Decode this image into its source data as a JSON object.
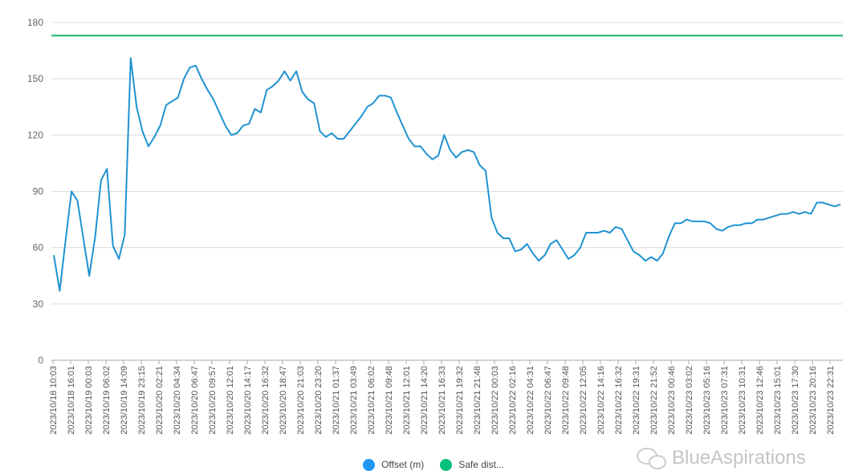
{
  "chart_data": {
    "type": "line",
    "title": "",
    "xlabel": "",
    "ylabel": "",
    "ylim": [
      0,
      180
    ],
    "yticks": [
      0,
      30,
      60,
      90,
      120,
      150,
      180
    ],
    "grid": true,
    "legend_position": "bottom",
    "x_tick_labels": [
      "2023/10/18 10:03",
      "2023/10/18 16:01",
      "2023/10/19 00:03",
      "2023/10/19 06:02",
      "2023/10/19 14:09",
      "2023/10/19 23:15",
      "2023/10/20 02:21",
      "2023/10/20 04:34",
      "2023/10/20 06:47",
      "2023/10/20 09:57",
      "2023/10/20 12:01",
      "2023/10/20 14:17",
      "2023/10/20 16:32",
      "2023/10/20 18:47",
      "2023/10/20 21:03",
      "2023/10/20 23:20",
      "2023/10/21 01:37",
      "2023/10/21 03:49",
      "2023/10/21 06:02",
      "2023/10/21 09:48",
      "2023/10/21 12:01",
      "2023/10/21 14:20",
      "2023/10/21 16:33",
      "2023/10/21 19:32",
      "2023/10/21 21:48",
      "2023/10/22 00:03",
      "2023/10/22 02:16",
      "2023/10/22 04:31",
      "2023/10/22 06:47",
      "2023/10/22 09:48",
      "2023/10/22 12:05",
      "2023/10/22 14:16",
      "2023/10/22 16:32",
      "2023/10/22 19:31",
      "2023/10/22 21:52",
      "2023/10/23 00:46",
      "2023/10/23 03:02",
      "2023/10/23 05:16",
      "2023/10/23 07:31",
      "2023/10/23 10:31",
      "2023/10/23 12:46",
      "2023/10/23 15:01",
      "2023/10/23 17:30",
      "2023/10/23 20:16",
      "2023/10/23 22:31"
    ],
    "series": [
      {
        "name": "Offset (m)",
        "color": "#1f93d1",
        "legend_color": "#2196f3",
        "values": [
          56,
          37,
          64,
          90,
          85,
          65,
          45,
          66,
          96,
          102,
          61,
          54,
          67,
          161,
          135,
          122,
          114,
          119,
          125,
          136,
          138,
          140,
          150,
          156,
          157,
          150,
          144,
          139,
          132,
          125,
          120,
          121,
          125,
          126,
          134,
          132,
          144,
          146,
          149,
          154,
          149,
          154,
          143,
          139,
          137,
          122,
          119,
          121,
          118,
          118,
          122,
          126,
          130,
          135,
          137,
          141,
          141,
          140,
          132,
          125,
          118,
          114,
          114,
          110,
          107,
          109,
          120,
          112,
          108,
          111,
          112,
          111,
          104,
          101,
          76,
          68,
          65,
          65,
          58,
          59,
          62,
          57,
          53,
          56,
          62,
          64,
          59,
          54,
          56,
          60,
          68,
          68,
          68,
          69,
          68,
          71,
          70,
          64,
          58,
          56,
          53,
          55,
          53,
          57,
          66,
          73,
          73,
          75,
          74,
          74,
          74,
          73,
          70,
          69,
          71,
          72,
          72,
          73,
          73,
          75,
          75,
          76,
          77,
          78,
          78,
          79,
          78,
          79,
          78,
          84,
          84,
          83,
          82,
          83
        ]
      },
      {
        "name": "Safe dist...",
        "color": "#14b86a",
        "legend_color": "#00c07a",
        "constant": 173
      }
    ]
  },
  "watermark": {
    "text": "BlueAspirations"
  }
}
